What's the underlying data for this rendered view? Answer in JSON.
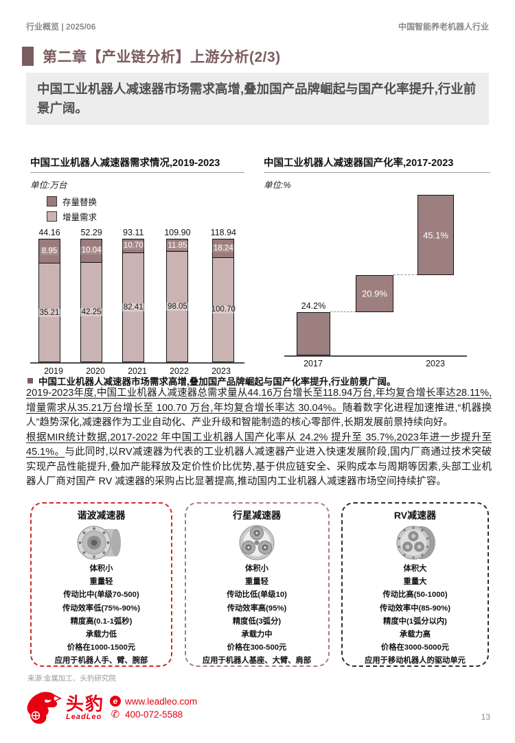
{
  "header": {
    "left": "行业概览 | 2025/06",
    "right": "中国智能养老机器人行业"
  },
  "chapter_title": "第二章【产业链分析】上游分析(2/3)",
  "highlight": "中国工业机器人减速器市场需求高增,叠加国产品牌崛起与国产化率提升,行业前景广阔。",
  "colors": {
    "accent_maroon": "#7b5c5f",
    "bar_dark": "#9c7b7b",
    "bar_light": "#c9b3b3",
    "waterfall_bar": "#9d7f7f",
    "highlight_bg": "#ededee",
    "logo_red": "#e60012",
    "box_borders": [
      "#d02823",
      "#a87e76",
      "#2b2b2b"
    ]
  },
  "chart_data": [
    {
      "type": "bar",
      "subtype": "stacked-100-visual",
      "title": "中国工业机器人减速器需求情况,2019-2023",
      "unit": "单位:万台",
      "categories": [
        "2019",
        "2020",
        "2021",
        "2022",
        "2023"
      ],
      "series": [
        {
          "name": "存量替换",
          "color": "#9c7b7b",
          "values": [
            8.95,
            10.04,
            10.7,
            11.85,
            18.24
          ],
          "labels": [
            "8.95",
            "10.04",
            "10.70",
            "11.85",
            "18.24"
          ]
        },
        {
          "name": "增量需求",
          "color": "#c9b3b3",
          "values": [
            35.21,
            42.25,
            82.41,
            98.05,
            100.7
          ],
          "labels": [
            "35.21",
            "42.25",
            "82.41",
            "98.05",
            "100.70"
          ]
        }
      ],
      "totals": [
        44.16,
        52.29,
        93.11,
        109.9,
        118.94
      ],
      "total_labels": [
        "44.16",
        "52.29",
        "93.11",
        "109.90",
        "118.94"
      ],
      "legend_position": "top-left",
      "grid": false
    },
    {
      "type": "bar",
      "subtype": "waterfall",
      "title": "中国工业机器人减速器国产化率,2017-2023",
      "unit": "单位:%",
      "ylim": [
        0,
        90.2
      ],
      "bars": [
        {
          "category": "2017",
          "start": 0,
          "height": 24.2,
          "label": "24.2%",
          "label_position": "above"
        },
        {
          "category": "",
          "start": 24.2,
          "height": 20.9,
          "label": "20.9%",
          "label_position": "inside"
        },
        {
          "category": "2023",
          "start": 45.1,
          "height": 45.1,
          "label": "45.1%",
          "label_position": "inside"
        }
      ],
      "grid": false
    }
  ],
  "analysis": {
    "bullet": "中国工业机器人减速器市场需求高增,叠加国产品牌崛起与国产化率提升,行业前景广阔。",
    "para1_underlined": "2019-2023年度,中国工业机器人减速器总需求量从44.16万台增长至118.94万台,年均复合增长率达28.11%,增量需求从35.21万台增长至 100.70 万台,年均复合增长率达 30.04%。",
    "para1_rest": "随着数字化进程加速推进,“机器换人”趋势深化,减速器作为工业自动化、产业升级和智能制造的核心零部件,长期发展前景持续向好。",
    "para2_underlined": "根据MIR统计数据,2017-2022 年中国工业机器人国产化率从 24.2% 提升至 35.7%,2023年进一步提升至45.1%。",
    "para2_rest": "与此同时,以RV减速器为代表的工业机器人减速器产业进入快速发展阶段,国内厂商通过技术突破实现产品性能提升,叠加产能释放及定价性价比优势,基于供应链安全、采购成本与周期等因素,头部工业机器人厂商对国产 RV 减速器的采购占比显著提高,推动国内工业机器人减速器市场空间持续扩容。"
  },
  "boxes": [
    {
      "title": "谐波减速器",
      "specs": [
        "体积小",
        "重量轻",
        "传动比中(单级70-500)",
        "传动效率低(75%-90%)",
        "精度高(0.1-1弧秒)",
        "承载力低",
        "价格在1000-1500元",
        "应用于机器人手、臂、腕部"
      ]
    },
    {
      "title": "行星减速器",
      "specs": [
        "体积小",
        "重量轻",
        "传动比低(单级10)",
        "传动效率高(95%)",
        "精度低(3弧分)",
        "承载力中",
        "价格在300-500元",
        "应用于机器人基座、大臂、肩部"
      ]
    },
    {
      "title": "RV减速器",
      "specs": [
        "体积大",
        "重量大",
        "传动比高(50-1000)",
        "传动效率中(85-90%)",
        "精度中(1弧分以内)",
        "承载力高",
        "价格在3000-5000元",
        "应用于移动机器人的驱动单元"
      ]
    }
  ],
  "footer": {
    "source": "来源:金属加工、头豹研究院",
    "brand_cn": "头豹",
    "brand_en": "LeadLeo",
    "e_badge": "e",
    "website": "www.leadleo.com",
    "phone": "400-072-5588",
    "page_number": "13"
  },
  "icons": {
    "phone": "✆"
  }
}
